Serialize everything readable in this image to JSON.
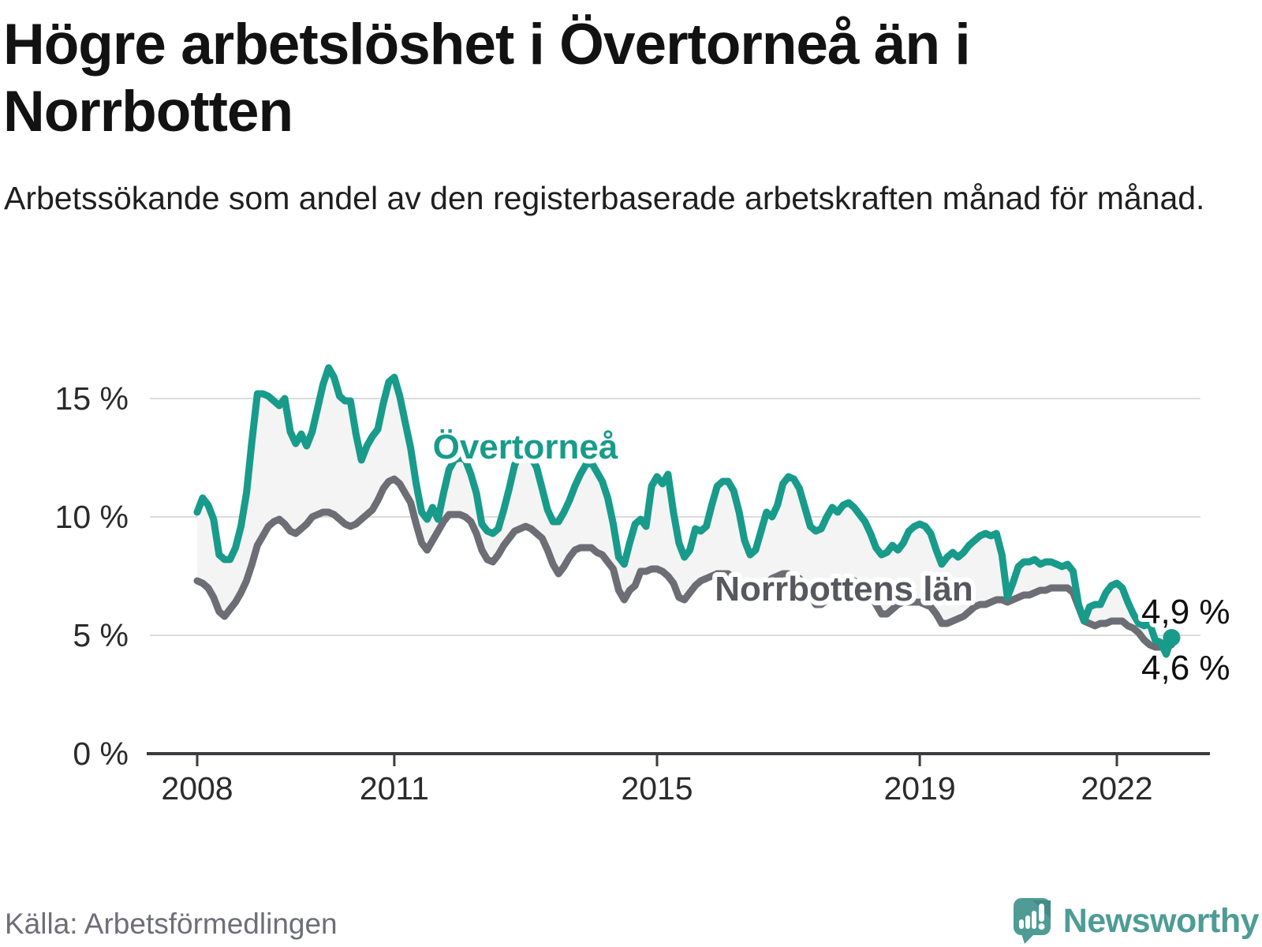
{
  "header": {
    "title": "Högre arbetslöshet i Övertorneå än i Norrbotten",
    "subtitle": "Arbetssökande som andel av den registerbaserade arbetskraften månad för månad."
  },
  "footer": {
    "source": "Källa: Arbetsförmedlingen",
    "brand_name": "Newsworthy",
    "brand_icon": "newsworthy-speech-bubble-bar-chart-icon",
    "brand_color": "#4e9c95"
  },
  "colors": {
    "overtornea": "#189b8b",
    "norrbotten_line": "#6d6d75",
    "norrbotten_label": "#57575e",
    "band_fill": "#f4f4f4",
    "gridline": "#dcdcdc",
    "axis": "#3b3b40",
    "end_label_text": "#0f0f0f"
  },
  "chart_data": {
    "type": "line",
    "title": "Högre arbetslöshet i Övertorneå än i Norrbotten",
    "subtitle": "Arbetssökande som andel av den registerbaserade arbetskraften månad för månad.",
    "unit": "%",
    "frequency": "monthly",
    "x_start": "2008-01",
    "x_end": "2022-11",
    "x_tick_labels": [
      "2008",
      "2011",
      "2015",
      "2019",
      "2022"
    ],
    "y_tick_labels": [
      "15 %",
      "10 %",
      "5 %",
      "0 %"
    ],
    "y_tick_values": [
      15,
      10,
      5,
      0
    ],
    "ylim": [
      0,
      17
    ],
    "grid": "horizontal",
    "legend": "inline-labels",
    "band_fill_between_series": true,
    "series": [
      {
        "name": "Övertorneå",
        "color": "#189b8b",
        "end_label": "4,9 %",
        "last_value": 4.9,
        "values": [
          10.2,
          10.8,
          10.5,
          9.9,
          8.4,
          8.2,
          8.2,
          8.7,
          9.6,
          11.0,
          13.2,
          15.2,
          15.2,
          15.1,
          14.9,
          14.7,
          15.0,
          13.6,
          13.1,
          13.5,
          13.0,
          13.6,
          14.6,
          15.6,
          16.3,
          15.9,
          15.1,
          14.9,
          14.9,
          13.5,
          12.4,
          13.0,
          13.4,
          13.7,
          14.8,
          15.7,
          15.9,
          15.1,
          14.0,
          12.9,
          11.4,
          10.2,
          9.9,
          10.4,
          9.9,
          11.0,
          12.0,
          12.4,
          12.5,
          12.4,
          11.8,
          11.0,
          9.7,
          9.4,
          9.3,
          9.5,
          10.3,
          11.2,
          12.2,
          12.6,
          12.7,
          12.5,
          12.1,
          11.2,
          10.3,
          9.8,
          9.8,
          10.2,
          10.7,
          11.3,
          11.8,
          12.2,
          12.3,
          11.9,
          11.5,
          10.8,
          9.7,
          8.3,
          8.0,
          8.9,
          9.7,
          9.9,
          9.6,
          11.3,
          11.7,
          11.4,
          11.8,
          10.2,
          8.9,
          8.3,
          8.6,
          9.5,
          9.4,
          9.6,
          10.5,
          11.3,
          11.5,
          11.5,
          11.1,
          10.2,
          9.0,
          8.4,
          8.6,
          9.4,
          10.2,
          10.0,
          10.5,
          11.4,
          11.7,
          11.6,
          11.2,
          10.4,
          9.6,
          9.4,
          9.5,
          10.0,
          10.4,
          10.2,
          10.5,
          10.6,
          10.4,
          10.1,
          9.8,
          9.3,
          8.7,
          8.4,
          8.5,
          8.8,
          8.6,
          8.9,
          9.4,
          9.6,
          9.7,
          9.6,
          9.3,
          8.6,
          8.0,
          8.3,
          8.5,
          8.3,
          8.5,
          8.8,
          9.0,
          9.2,
          9.3,
          9.2,
          9.3,
          8.4,
          6.6,
          7.2,
          7.9,
          8.1,
          8.1,
          8.2,
          8.0,
          8.1,
          8.1,
          8.0,
          7.9,
          8.0,
          7.7,
          6.3,
          5.6,
          6.2,
          6.3,
          6.3,
          6.8,
          7.1,
          7.2,
          7.0,
          6.4,
          5.9,
          5.5,
          5.4,
          5.5,
          4.8,
          4.7,
          4.2,
          4.9
        ]
      },
      {
        "name": "Norrbottens län",
        "color": "#6d6d75",
        "end_label": "4,6 %",
        "last_value": 4.6,
        "values": [
          7.3,
          7.2,
          7.0,
          6.6,
          6.0,
          5.8,
          6.1,
          6.4,
          6.8,
          7.3,
          8.0,
          8.8,
          9.2,
          9.6,
          9.8,
          9.9,
          9.7,
          9.4,
          9.3,
          9.5,
          9.7,
          10.0,
          10.1,
          10.2,
          10.2,
          10.1,
          9.9,
          9.7,
          9.6,
          9.7,
          9.9,
          10.1,
          10.3,
          10.7,
          11.2,
          11.5,
          11.6,
          11.4,
          11.0,
          10.6,
          9.7,
          8.9,
          8.6,
          9.0,
          9.4,
          9.8,
          10.1,
          10.1,
          10.1,
          10.0,
          9.8,
          9.3,
          8.6,
          8.2,
          8.1,
          8.4,
          8.8,
          9.1,
          9.4,
          9.5,
          9.6,
          9.5,
          9.3,
          9.1,
          8.6,
          8.0,
          7.6,
          7.9,
          8.3,
          8.6,
          8.7,
          8.7,
          8.7,
          8.5,
          8.4,
          8.1,
          7.8,
          6.9,
          6.5,
          6.9,
          7.1,
          7.7,
          7.7,
          7.8,
          7.8,
          7.7,
          7.5,
          7.2,
          6.6,
          6.5,
          6.8,
          7.1,
          7.3,
          7.4,
          7.5,
          7.6,
          7.6,
          7.6,
          7.4,
          7.1,
          6.7,
          6.5,
          6.6,
          6.9,
          7.2,
          7.4,
          7.5,
          7.6,
          7.6,
          7.5,
          7.4,
          7.1,
          6.7,
          6.3,
          6.3,
          6.5,
          6.8,
          7.0,
          7.2,
          7.3,
          7.3,
          7.2,
          7.0,
          6.7,
          6.3,
          5.9,
          5.9,
          6.1,
          6.3,
          6.4,
          6.4,
          6.4,
          6.4,
          6.3,
          6.2,
          5.9,
          5.5,
          5.5,
          5.6,
          5.7,
          5.8,
          6.0,
          6.2,
          6.3,
          6.3,
          6.4,
          6.5,
          6.5,
          6.4,
          6.5,
          6.6,
          6.7,
          6.7,
          6.8,
          6.9,
          6.9,
          7.0,
          7.0,
          7.0,
          7.0,
          6.8,
          6.2,
          5.6,
          5.5,
          5.4,
          5.5,
          5.5,
          5.6,
          5.6,
          5.6,
          5.4,
          5.3,
          5.1,
          4.8,
          4.6,
          4.5,
          4.5,
          4.5,
          4.6
        ]
      }
    ]
  }
}
